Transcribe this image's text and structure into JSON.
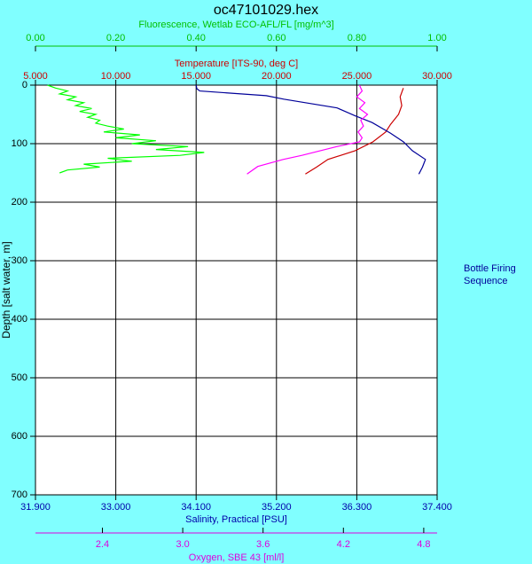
{
  "chart_data": {
    "type": "line",
    "title": "oc47101029.hex",
    "ylabel": "Depth [salt water, m]",
    "ylim": [
      0,
      700
    ],
    "y_inverted": true,
    "yticks": [
      0,
      100,
      200,
      300,
      400,
      500,
      600,
      700
    ],
    "grid": true,
    "annotation": "Bottle Firing Sequence",
    "x_axes": [
      {
        "name": "Fluorescence, Wetlab ECO-AFL/FL [mg/m^3]",
        "side": "top",
        "color": "#00c000",
        "xlim": [
          0,
          1
        ],
        "xticks": [
          {
            "value": 0,
            "label": "0.00"
          },
          {
            "value": 0.2,
            "label": "0.20"
          },
          {
            "value": 0.4,
            "label": "0.40"
          },
          {
            "value": 0.6,
            "label": "0.60"
          },
          {
            "value": 0.8,
            "label": "0.80"
          },
          {
            "value": 1,
            "label": "1.00"
          }
        ]
      },
      {
        "name": "Temperature [ITS-90, deg C]",
        "side": "top",
        "color": "#cc0000",
        "xlim": [
          5,
          30
        ],
        "xticks": [
          {
            "value": 5,
            "label": "5.000"
          },
          {
            "value": 10,
            "label": "10.000"
          },
          {
            "value": 15,
            "label": "15.000"
          },
          {
            "value": 20,
            "label": "20.000"
          },
          {
            "value": 25,
            "label": "25.000"
          },
          {
            "value": 30,
            "label": "30.000"
          }
        ]
      },
      {
        "name": "Salinity, Practical [PSU]",
        "side": "bottom",
        "color": "#0000aa",
        "xlim": [
          31.9,
          37.4
        ],
        "xticks": [
          {
            "value": 31.9,
            "label": "31.900"
          },
          {
            "value": 33.0,
            "label": "33.000"
          },
          {
            "value": 34.1,
            "label": "34.100"
          },
          {
            "value": 35.2,
            "label": "35.200"
          },
          {
            "value": 36.3,
            "label": "36.300"
          },
          {
            "value": 37.4,
            "label": "37.400"
          }
        ]
      },
      {
        "name": "Oxygen, SBE 43 [ml/l]",
        "side": "bottom",
        "color": "#dd00dd",
        "xlim": [
          1.9,
          4.9
        ],
        "xticks": [
          2.4,
          {
            "value": 3.0,
            "label": "3.0"
          },
          3.6,
          4.2,
          4.8
        ]
      }
    ],
    "series": [
      {
        "axis": 0,
        "color": "#00ff00",
        "depth": [
          0,
          5,
          10,
          15,
          20,
          25,
          30,
          35,
          40,
          45,
          50,
          55,
          60,
          65,
          70,
          75,
          80,
          85,
          90,
          95,
          100,
          105,
          110,
          115,
          120,
          125,
          130,
          135,
          140,
          145,
          150
        ],
        "values": [
          0.03,
          0.05,
          0.08,
          0.06,
          0.1,
          0.08,
          0.12,
          0.1,
          0.14,
          0.11,
          0.15,
          0.13,
          0.16,
          0.15,
          0.18,
          0.22,
          0.17,
          0.26,
          0.2,
          0.3,
          0.24,
          0.38,
          0.3,
          0.42,
          0.36,
          0.18,
          0.24,
          0.12,
          0.16,
          0.08,
          0.06
        ]
      },
      {
        "axis": 1,
        "color": "#cc0000",
        "depth": [
          5,
          20,
          35,
          50,
          67,
          80,
          97,
          112,
          127,
          140,
          152
        ],
        "values": [
          27.9,
          27.7,
          27.8,
          27.6,
          27.1,
          26.8,
          26.0,
          24.9,
          23.2,
          22.5,
          21.8
        ]
      },
      {
        "axis": 2,
        "color": "#000099",
        "depth": [
          0,
          6,
          10,
          18,
          24,
          39,
          52,
          64,
          82,
          97,
          112,
          127,
          140,
          152
        ],
        "values": [
          34.1,
          34.11,
          34.15,
          35.06,
          35.3,
          36.03,
          36.27,
          36.51,
          36.76,
          36.94,
          37.06,
          37.24,
          37.2,
          37.15
        ]
      },
      {
        "axis": 3,
        "color": "#ff00ff",
        "depth": [
          0,
          10,
          20,
          30,
          40,
          50,
          60,
          70,
          80,
          90,
          97,
          105,
          120,
          127,
          139,
          152
        ],
        "values": [
          4.32,
          4.34,
          4.3,
          4.36,
          4.32,
          4.38,
          4.33,
          4.35,
          4.31,
          4.34,
          4.32,
          4.15,
          3.89,
          3.75,
          3.56,
          3.48
        ]
      }
    ]
  }
}
